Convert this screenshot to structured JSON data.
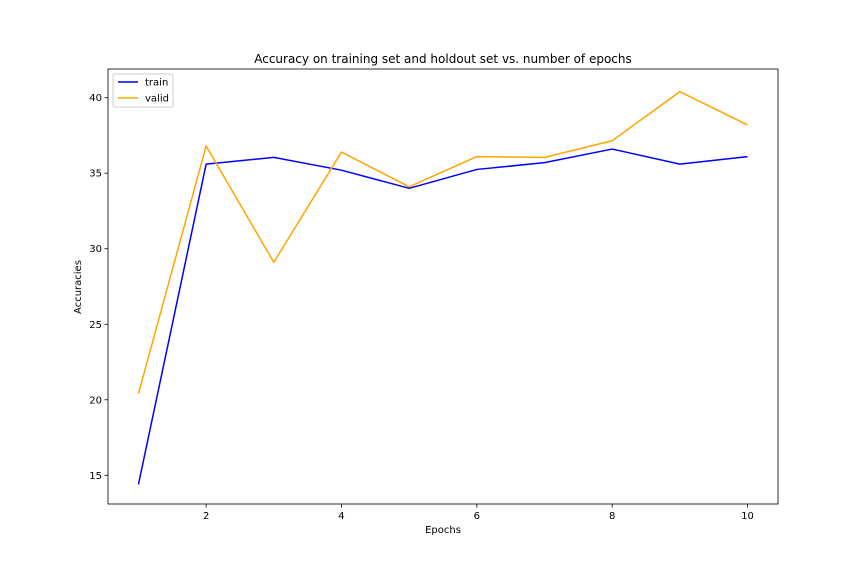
{
  "chart_data": {
    "type": "line",
    "title": "Accuracy on training set and holdout set vs. number of epochs",
    "xlabel": "Epochs",
    "ylabel": "Accuracies",
    "x": [
      1,
      2,
      3,
      4,
      5,
      6,
      7,
      8,
      9,
      10
    ],
    "xlim": [
      0.55,
      10.45
    ],
    "ylim": [
      13.1,
      41.9
    ],
    "xticks": [
      2,
      4,
      6,
      8,
      10
    ],
    "yticks": [
      15,
      20,
      25,
      30,
      35,
      40
    ],
    "grid": false,
    "legend_position": "top-left",
    "series": [
      {
        "name": "train",
        "color": "#0000ff",
        "values": [
          14.4,
          35.6,
          36.05,
          35.2,
          34.0,
          35.25,
          35.7,
          36.6,
          35.6,
          36.1
        ]
      },
      {
        "name": "valid",
        "color": "#ffa500",
        "values": [
          20.4,
          36.8,
          29.1,
          36.4,
          34.1,
          36.1,
          36.05,
          37.15,
          40.4,
          38.2
        ]
      }
    ]
  }
}
